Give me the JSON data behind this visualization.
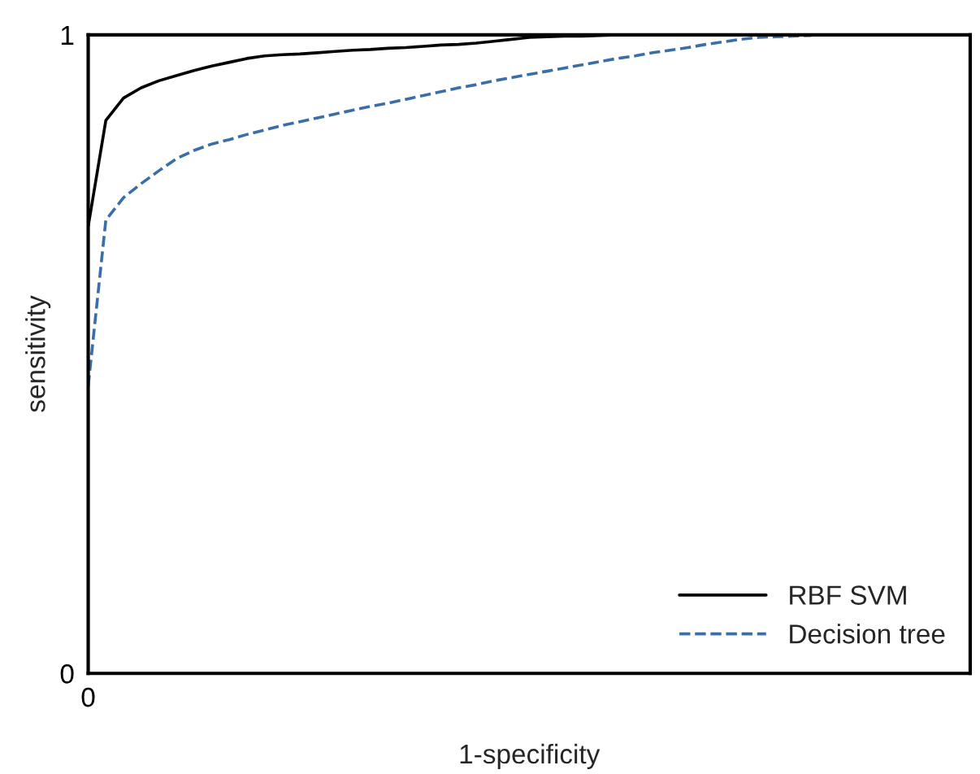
{
  "chart_data": {
    "type": "line",
    "xlabel": "1-specificity",
    "ylabel": "sensitivity",
    "categories": [
      "0",
      null,
      null,
      null,
      null,
      null,
      null,
      null,
      null,
      null,
      null,
      null,
      null,
      null,
      null,
      null,
      null,
      null,
      null,
      null,
      null,
      null,
      null,
      null,
      null,
      null,
      null,
      null,
      null,
      null,
      null,
      null,
      null,
      null,
      null,
      null,
      null,
      null,
      null,
      null,
      null,
      null,
      null,
      null,
      null,
      null,
      null,
      null,
      null,
      null,
      null
    ],
    "ylim": [
      0,
      1
    ],
    "yticks": [
      0,
      1
    ],
    "legend": "bottom right",
    "series": [
      {
        "name": "RBF SVM",
        "color": "#000000",
        "line_style": "solid",
        "values": [
          0.7,
          0.866,
          0.901,
          0.917,
          0.928,
          0.936,
          0.944,
          0.951,
          0.957,
          0.963,
          0.967,
          0.969,
          0.97,
          0.972,
          0.974,
          0.976,
          0.977,
          0.979,
          0.98,
          0.982,
          0.984,
          0.985,
          0.987,
          0.99,
          0.993,
          0.996,
          0.997,
          0.998,
          0.998,
          0.999,
          1,
          1,
          1,
          1,
          1,
          1,
          1,
          1,
          1,
          1,
          1,
          1,
          1,
          1,
          1,
          1,
          1,
          1,
          1,
          1,
          1
        ]
      },
      {
        "name": "Decision tree",
        "color": "#3b6ea5",
        "line_style": "dashed",
        "values": [
          0.45,
          0.71,
          0.745,
          0.767,
          0.787,
          0.806,
          0.819,
          0.829,
          0.836,
          0.844,
          0.851,
          0.858,
          0.864,
          0.87,
          0.876,
          0.882,
          0.888,
          0.893,
          0.899,
          0.905,
          0.911,
          0.917,
          0.922,
          0.928,
          0.933,
          0.938,
          0.943,
          0.948,
          0.953,
          0.958,
          0.963,
          0.967,
          0.972,
          0.976,
          0.98,
          0.985,
          0.989,
          0.993,
          0.996,
          0.997,
          0.998,
          0.999,
          null,
          null,
          null,
          null,
          null,
          null,
          null,
          null,
          null
        ]
      }
    ]
  }
}
